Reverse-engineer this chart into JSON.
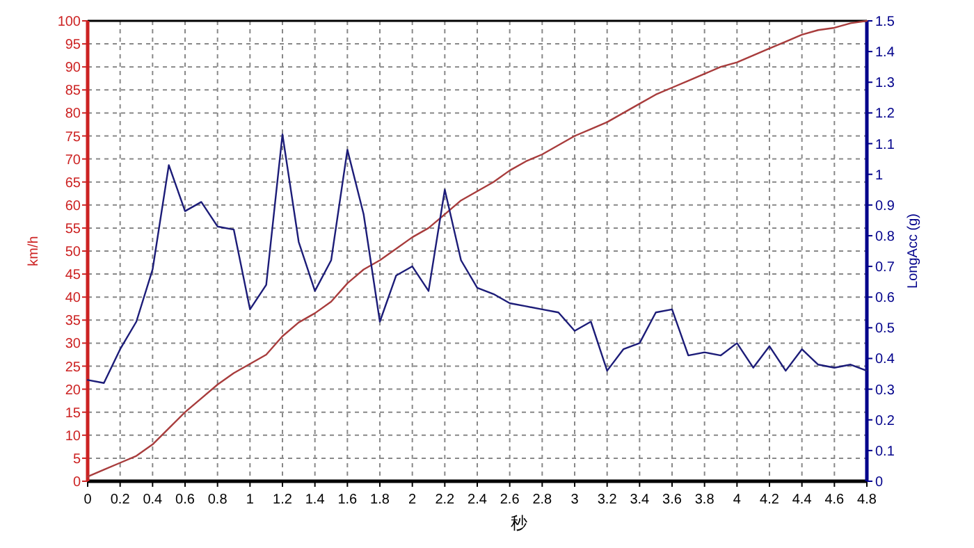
{
  "chart_data": {
    "type": "line",
    "xlabel": "秒",
    "ylabel": "km/h",
    "y2label": "LongAcc (g)",
    "x": [
      0,
      0.1,
      0.2,
      0.3,
      0.4,
      0.5,
      0.6,
      0.7,
      0.8,
      0.9,
      1.0,
      1.1,
      1.2,
      1.3,
      1.4,
      1.5,
      1.6,
      1.7,
      1.8,
      1.9,
      2.0,
      2.1,
      2.2,
      2.3,
      2.4,
      2.5,
      2.6,
      2.7,
      2.8,
      2.9,
      3.0,
      3.1,
      3.2,
      3.3,
      3.4,
      3.5,
      3.6,
      3.7,
      3.8,
      3.9,
      4.0,
      4.1,
      4.2,
      4.3,
      4.4,
      4.5,
      4.6,
      4.7,
      4.8
    ],
    "series": [
      {
        "color": "#a83c3c",
        "values": [
          1,
          2.5,
          4,
          5.5,
          8,
          11.5,
          15,
          18,
          21,
          23.5,
          25.5,
          27.5,
          31.5,
          34.5,
          36.5,
          39,
          43,
          46,
          48,
          50.5,
          53,
          55,
          58,
          61,
          63,
          65,
          67.5,
          69.5,
          71,
          73,
          75,
          76.5,
          78,
          80,
          82,
          84,
          85.5,
          87,
          88.5,
          90,
          91,
          92.5,
          94,
          95.5,
          97,
          98,
          98.5,
          99.5,
          100
        ]
      },
      {
        "color": "#1c1c78",
        "axis": "y2",
        "values": [
          0.33,
          0.32,
          0.43,
          0.52,
          0.69,
          1.03,
          0.88,
          0.91,
          0.83,
          0.82,
          0.56,
          0.64,
          1.13,
          0.78,
          0.62,
          0.72,
          1.08,
          0.87,
          0.52,
          0.67,
          0.7,
          0.62,
          0.95,
          0.72,
          0.63,
          0.61,
          0.58,
          0.57,
          0.56,
          0.55,
          0.49,
          0.52,
          0.36,
          0.43,
          0.45,
          0.55,
          0.56,
          0.41,
          0.42,
          0.41,
          0.45,
          0.37,
          0.44,
          0.36,
          0.43,
          0.38,
          0.37,
          0.38,
          0.36
        ]
      }
    ],
    "xlim": [
      0,
      4.8
    ],
    "xticks": [
      0,
      0.2,
      0.4,
      0.6,
      0.8,
      1,
      1.2,
      1.4,
      1.6,
      1.8,
      2,
      2.2,
      2.4,
      2.6,
      2.8,
      3,
      3.2,
      3.4,
      3.6,
      3.8,
      4,
      4.2,
      4.4,
      4.6,
      4.8
    ],
    "ylim": [
      0,
      100
    ],
    "yticks": [
      0,
      5,
      10,
      15,
      20,
      25,
      30,
      35,
      40,
      45,
      50,
      55,
      60,
      65,
      70,
      75,
      80,
      85,
      90,
      95,
      100
    ],
    "y2lim": [
      0,
      1.5
    ],
    "y2ticks": [
      0,
      0.1,
      0.2,
      0.3,
      0.4,
      0.5,
      0.6,
      0.7,
      0.8,
      0.9,
      1,
      1.1,
      1.2,
      1.3,
      1.4,
      1.5
    ],
    "grid": true,
    "line_style": "solid"
  }
}
